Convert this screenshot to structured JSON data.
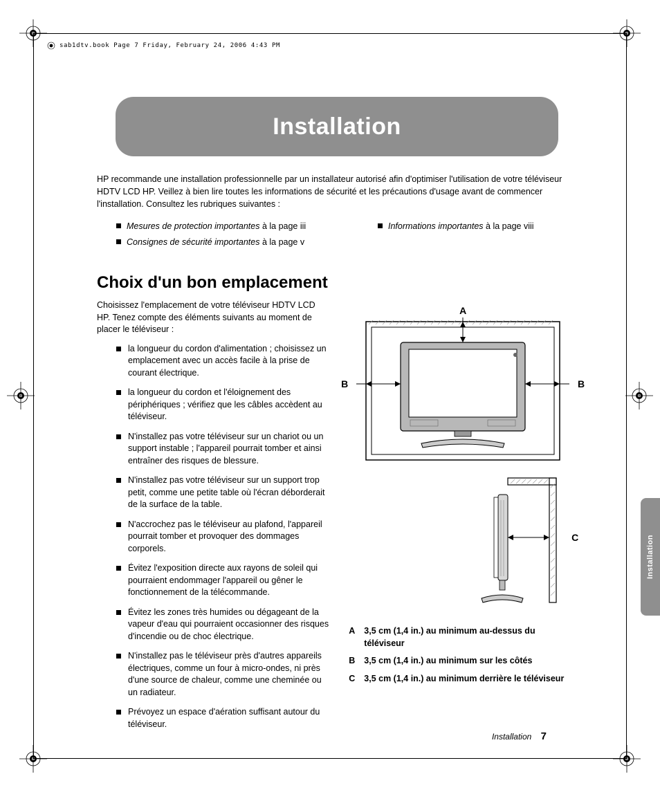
{
  "meta": {
    "header_line": "sab1dtv.book  Page 7  Friday, February 24, 2006  4:43 PM"
  },
  "banner": {
    "title": "Installation"
  },
  "intro": "HP recommande une installation professionnelle par un installateur autorisé afin d'optimiser l'utilisation de votre téléviseur HDTV LCD HP. Veillez à bien lire toutes les informations de sécurité et les précautions d'usage avant de commencer l'installation. Consultez les rubriques suivantes :",
  "refs": {
    "left": [
      {
        "italic": "Mesures de protection importantes",
        "tail": " à la page iii"
      },
      {
        "italic": "Consignes de sécurité importantes",
        "tail": " à la page v"
      }
    ],
    "right": [
      {
        "italic": "Informations importantes",
        "tail": " à la page viii"
      }
    ]
  },
  "section_title": "Choix d'un bon emplacement",
  "lead": "Choisissez l'emplacement de votre téléviseur HDTV LCD HP. Tenez compte des éléments suivants au moment de placer le téléviseur :",
  "bullets": [
    "la longueur du cordon d'alimentation ; choisissez un emplacement avec un accès facile à la prise de courant électrique.",
    "la longueur du cordon et l'éloignement des périphériques ; vérifiez que les câbles accèdent au téléviseur.",
    "N'installez pas votre téléviseur sur un chariot ou un support instable ; l'appareil pourrait tomber et ainsi entraîner des risques de blessure.",
    "N'installez pas votre téléviseur sur un support trop petit, comme une petite table où l'écran déborderait de la surface de la table.",
    "N'accrochez pas le téléviseur au plafond, l'appareil pourrait tomber et provoquer des dommages corporels.",
    "Évitez l'exposition directe aux rayons de soleil qui pourraient endommager l'appareil ou gêner le fonctionnement de la télécommande.",
    "Évitez les zones très humides ou dégageant de la vapeur d'eau qui pourraient occasionner des risques d'incendie ou de choc électrique.",
    "N'installez pas le téléviseur près d'autres appareils électriques, comme un four à micro-ondes, ni près d'une source de chaleur, comme une cheminée ou un radiateur.",
    "Prévoyez un espace d'aération suffisant autour du téléviseur."
  ],
  "diagram_labels": {
    "A": "A",
    "Bl": "B",
    "Br": "B",
    "C": "C"
  },
  "clearances": [
    {
      "letter": "A",
      "text": "3,5 cm (1,4 in.) au minimum au-dessus du téléviseur"
    },
    {
      "letter": "B",
      "text": "3,5 cm (1,4 in.) au minimum sur les côtés"
    },
    {
      "letter": "C",
      "text": "3,5 cm (1,4 in.) au minimum derrière le téléviseur"
    }
  ],
  "side_tab": "Installation",
  "footer": {
    "section": "Installation",
    "page": "7"
  },
  "style": {
    "banner_bg": "#8f8f8f",
    "text_color": "#000000",
    "page_bg": "#ffffff"
  }
}
